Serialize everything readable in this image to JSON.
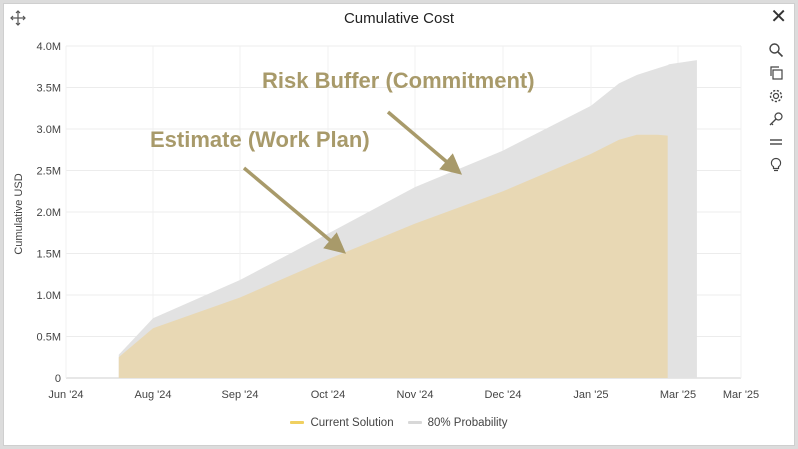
{
  "window": {
    "title": "Cumulative Cost",
    "icons": [
      "move-icon",
      "close-icon",
      "search-icon",
      "copy-icon",
      "settings-icon",
      "key-icon",
      "menu-icon",
      "lightbulb-icon"
    ]
  },
  "chart_data": {
    "type": "area",
    "title": "Cumulative Cost",
    "xlabel": "",
    "ylabel": "Cumulative USD",
    "y_ticks": [
      "0",
      "0.5M",
      "1.0M",
      "1.5M",
      "2.0M",
      "2.5M",
      "3.0M",
      "3.5M",
      "4.0M"
    ],
    "x_ticks": [
      "Jun '24",
      "Aug '24",
      "Sep '24",
      "Oct '24",
      "Nov '24",
      "Dec '24",
      "Jan '25",
      "Mar '25",
      "Mar '25"
    ],
    "ylim": [
      0,
      4.0
    ],
    "y_unit": "M USD",
    "grid": true,
    "legend_position": "bottom",
    "x": [
      "2024-07-08",
      "2024-08-01",
      "2024-09-01",
      "2024-10-01",
      "2024-11-01",
      "2024-12-01",
      "2025-01-01",
      "2025-01-20",
      "2025-02-01",
      "2025-02-15",
      "2025-02-22",
      "2025-02-23",
      "2025-03-10"
    ],
    "series": [
      {
        "name": "Current Solution",
        "color": "#e8d8b4",
        "legend_color": "#f0d060",
        "values": [
          0.25,
          0.6,
          0.97,
          1.43,
          1.86,
          2.25,
          2.7,
          2.87,
          2.93,
          2.93,
          2.92,
          null,
          null
        ]
      },
      {
        "name": "80% Probability",
        "color": "#e2e2e2",
        "legend_color": "#d8d8d8",
        "values": [
          0.28,
          0.72,
          1.18,
          1.74,
          2.3,
          2.74,
          3.28,
          3.55,
          3.65,
          3.73,
          3.77,
          3.78,
          3.83
        ]
      }
    ],
    "annotations": [
      {
        "text": "Risk Buffer (Commitment)",
        "color": "#a89a6a"
      },
      {
        "text": "Estimate (Work Plan)",
        "color": "#a89a6a"
      }
    ]
  }
}
